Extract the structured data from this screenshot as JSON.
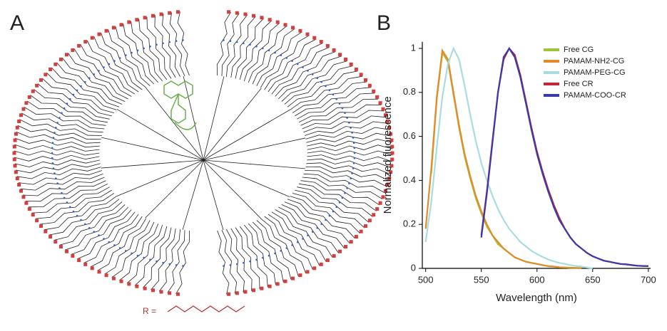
{
  "panel_a": {
    "label": "A",
    "r_label": "R ="
  },
  "chart_data": {
    "type": "line",
    "panel_label": "B",
    "xlabel": "Wavelength (nm)",
    "ylabel": "Normalized fluorescence",
    "x": [
      500,
      505,
      510,
      515,
      520,
      525,
      530,
      535,
      540,
      545,
      550,
      555,
      560,
      565,
      570,
      575,
      580,
      585,
      590,
      595,
      600,
      605,
      610,
      615,
      620,
      625,
      630,
      635,
      640,
      645,
      650,
      655,
      660,
      665,
      670,
      675,
      680,
      685,
      690,
      695,
      700
    ],
    "xlim": [
      497,
      702
    ],
    "xticks": [
      500,
      550,
      600,
      650,
      700
    ],
    "ylim": [
      0,
      1.03
    ],
    "yticks": [
      0,
      0.2,
      0.4,
      0.6,
      0.8,
      1
    ],
    "legend": "top-right",
    "series": [
      {
        "name": "Free CG",
        "color": "#9dc43a",
        "values": [
          null,
          0.43,
          0.77,
          0.98,
          0.94,
          0.79,
          0.64,
          0.51,
          0.41,
          0.32,
          0.25,
          0.19,
          0.15,
          0.11,
          0.09,
          0.07,
          0.05,
          0.04,
          0.03,
          0.025,
          0.02,
          0.015,
          0.01,
          0.008,
          0.005,
          0.004,
          0.003,
          0.002,
          0.001,
          null,
          null,
          null,
          null,
          null,
          null,
          null,
          null,
          null,
          null,
          null,
          null
        ]
      },
      {
        "name": "PAMAM-NH2-CG",
        "color": "#e38a2a",
        "values": [
          0.18,
          0.45,
          0.78,
          0.99,
          0.95,
          0.8,
          0.65,
          0.52,
          0.42,
          0.33,
          0.26,
          0.2,
          0.15,
          0.12,
          0.09,
          0.07,
          0.05,
          0.04,
          0.03,
          0.025,
          0.02,
          0.015,
          0.01,
          0.008,
          0.005,
          0.004,
          0.003,
          0.002,
          0.001,
          null,
          null,
          null,
          null,
          null,
          null,
          null,
          null,
          null,
          null,
          null,
          null
        ]
      },
      {
        "name": "PAMAM-PEG-CG",
        "color": "#a8dde0",
        "values": [
          0.12,
          0.3,
          0.55,
          0.78,
          0.93,
          1,
          0.95,
          0.83,
          0.7,
          0.58,
          0.48,
          0.4,
          0.33,
          0.27,
          0.22,
          0.18,
          0.15,
          0.12,
          0.1,
          0.08,
          0.065,
          0.052,
          0.04,
          0.032,
          0.025,
          0.02,
          0.015,
          0.011,
          0.008,
          0.004,
          0,
          null,
          null,
          null,
          null,
          null,
          null,
          null,
          null,
          null,
          null
        ]
      },
      {
        "name": "Free CR",
        "color": "#c0283a",
        "values": [
          null,
          null,
          null,
          null,
          null,
          null,
          null,
          null,
          null,
          null,
          0.15,
          0.35,
          0.58,
          0.8,
          0.95,
          1,
          0.97,
          0.88,
          0.76,
          0.64,
          0.53,
          0.44,
          0.36,
          0.29,
          0.23,
          0.18,
          0.14,
          0.11,
          0.09,
          0.07,
          0.055,
          0.045,
          0.035,
          0.03,
          0.025,
          0.02,
          0.018,
          0.015,
          0.012,
          0.011,
          0.01
        ]
      },
      {
        "name": "PAMAM-COO-CR",
        "color": "#3a3aa8",
        "values": [
          null,
          null,
          null,
          null,
          null,
          null,
          null,
          null,
          null,
          null,
          0.14,
          0.34,
          0.57,
          0.8,
          0.96,
          1,
          0.96,
          0.87,
          0.75,
          0.63,
          0.52,
          0.43,
          0.35,
          0.28,
          0.22,
          0.18,
          0.14,
          0.11,
          0.09,
          0.07,
          0.055,
          0.045,
          0.035,
          0.03,
          0.025,
          0.02,
          0.018,
          0.015,
          0.012,
          0.011,
          0.01
        ]
      }
    ]
  }
}
